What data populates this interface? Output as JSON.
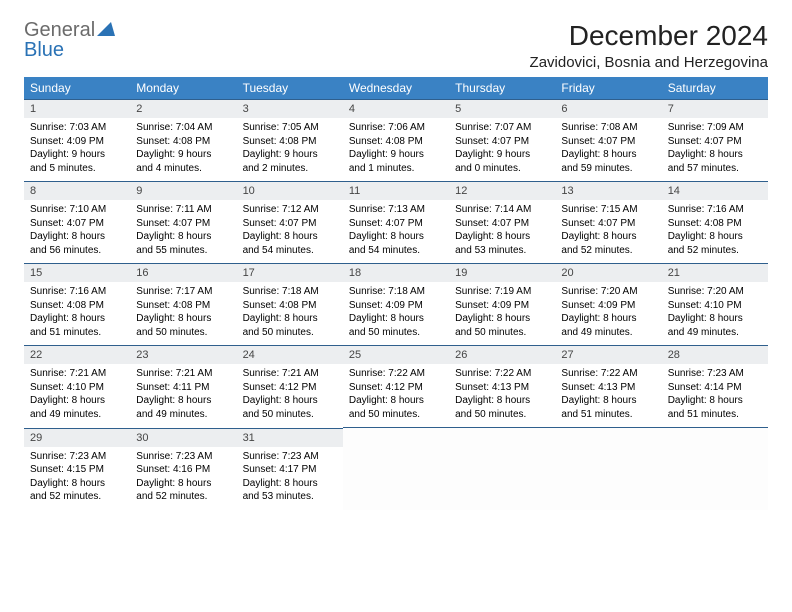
{
  "brand": {
    "part1": "General",
    "part2": "Blue"
  },
  "title": "December 2024",
  "location": "Zavidovici, Bosnia and Herzegovina",
  "colors": {
    "header_bg": "#3a82c4",
    "header_text": "#ffffff",
    "daynum_bg": "#eceef0",
    "daynum_text": "#454545",
    "rule": "#2f5f8d",
    "brand_gray": "#6b6b6b",
    "brand_blue": "#2a72b5"
  },
  "weekdays": [
    "Sunday",
    "Monday",
    "Tuesday",
    "Wednesday",
    "Thursday",
    "Friday",
    "Saturday"
  ],
  "weeks": [
    [
      {
        "n": "1",
        "sunrise": "7:03 AM",
        "sunset": "4:09 PM",
        "day_h": "9",
        "day_m": "5"
      },
      {
        "n": "2",
        "sunrise": "7:04 AM",
        "sunset": "4:08 PM",
        "day_h": "9",
        "day_m": "4"
      },
      {
        "n": "3",
        "sunrise": "7:05 AM",
        "sunset": "4:08 PM",
        "day_h": "9",
        "day_m": "2"
      },
      {
        "n": "4",
        "sunrise": "7:06 AM",
        "sunset": "4:08 PM",
        "day_h": "9",
        "day_m": "1"
      },
      {
        "n": "5",
        "sunrise": "7:07 AM",
        "sunset": "4:07 PM",
        "day_h": "9",
        "day_m": "0"
      },
      {
        "n": "6",
        "sunrise": "7:08 AM",
        "sunset": "4:07 PM",
        "day_h": "8",
        "day_m": "59"
      },
      {
        "n": "7",
        "sunrise": "7:09 AM",
        "sunset": "4:07 PM",
        "day_h": "8",
        "day_m": "57"
      }
    ],
    [
      {
        "n": "8",
        "sunrise": "7:10 AM",
        "sunset": "4:07 PM",
        "day_h": "8",
        "day_m": "56"
      },
      {
        "n": "9",
        "sunrise": "7:11 AM",
        "sunset": "4:07 PM",
        "day_h": "8",
        "day_m": "55"
      },
      {
        "n": "10",
        "sunrise": "7:12 AM",
        "sunset": "4:07 PM",
        "day_h": "8",
        "day_m": "54"
      },
      {
        "n": "11",
        "sunrise": "7:13 AM",
        "sunset": "4:07 PM",
        "day_h": "8",
        "day_m": "54"
      },
      {
        "n": "12",
        "sunrise": "7:14 AM",
        "sunset": "4:07 PM",
        "day_h": "8",
        "day_m": "53"
      },
      {
        "n": "13",
        "sunrise": "7:15 AM",
        "sunset": "4:07 PM",
        "day_h": "8",
        "day_m": "52"
      },
      {
        "n": "14",
        "sunrise": "7:16 AM",
        "sunset": "4:08 PM",
        "day_h": "8",
        "day_m": "52"
      }
    ],
    [
      {
        "n": "15",
        "sunrise": "7:16 AM",
        "sunset": "4:08 PM",
        "day_h": "8",
        "day_m": "51"
      },
      {
        "n": "16",
        "sunrise": "7:17 AM",
        "sunset": "4:08 PM",
        "day_h": "8",
        "day_m": "50"
      },
      {
        "n": "17",
        "sunrise": "7:18 AM",
        "sunset": "4:08 PM",
        "day_h": "8",
        "day_m": "50"
      },
      {
        "n": "18",
        "sunrise": "7:18 AM",
        "sunset": "4:09 PM",
        "day_h": "8",
        "day_m": "50"
      },
      {
        "n": "19",
        "sunrise": "7:19 AM",
        "sunset": "4:09 PM",
        "day_h": "8",
        "day_m": "50"
      },
      {
        "n": "20",
        "sunrise": "7:20 AM",
        "sunset": "4:09 PM",
        "day_h": "8",
        "day_m": "49"
      },
      {
        "n": "21",
        "sunrise": "7:20 AM",
        "sunset": "4:10 PM",
        "day_h": "8",
        "day_m": "49"
      }
    ],
    [
      {
        "n": "22",
        "sunrise": "7:21 AM",
        "sunset": "4:10 PM",
        "day_h": "8",
        "day_m": "49"
      },
      {
        "n": "23",
        "sunrise": "7:21 AM",
        "sunset": "4:11 PM",
        "day_h": "8",
        "day_m": "49"
      },
      {
        "n": "24",
        "sunrise": "7:21 AM",
        "sunset": "4:12 PM",
        "day_h": "8",
        "day_m": "50"
      },
      {
        "n": "25",
        "sunrise": "7:22 AM",
        "sunset": "4:12 PM",
        "day_h": "8",
        "day_m": "50"
      },
      {
        "n": "26",
        "sunrise": "7:22 AM",
        "sunset": "4:13 PM",
        "day_h": "8",
        "day_m": "50"
      },
      {
        "n": "27",
        "sunrise": "7:22 AM",
        "sunset": "4:13 PM",
        "day_h": "8",
        "day_m": "51"
      },
      {
        "n": "28",
        "sunrise": "7:23 AM",
        "sunset": "4:14 PM",
        "day_h": "8",
        "day_m": "51"
      }
    ],
    [
      {
        "n": "29",
        "sunrise": "7:23 AM",
        "sunset": "4:15 PM",
        "day_h": "8",
        "day_m": "52"
      },
      {
        "n": "30",
        "sunrise": "7:23 AM",
        "sunset": "4:16 PM",
        "day_h": "8",
        "day_m": "52"
      },
      {
        "n": "31",
        "sunrise": "7:23 AM",
        "sunset": "4:17 PM",
        "day_h": "8",
        "day_m": "53"
      },
      null,
      null,
      null,
      null
    ]
  ]
}
